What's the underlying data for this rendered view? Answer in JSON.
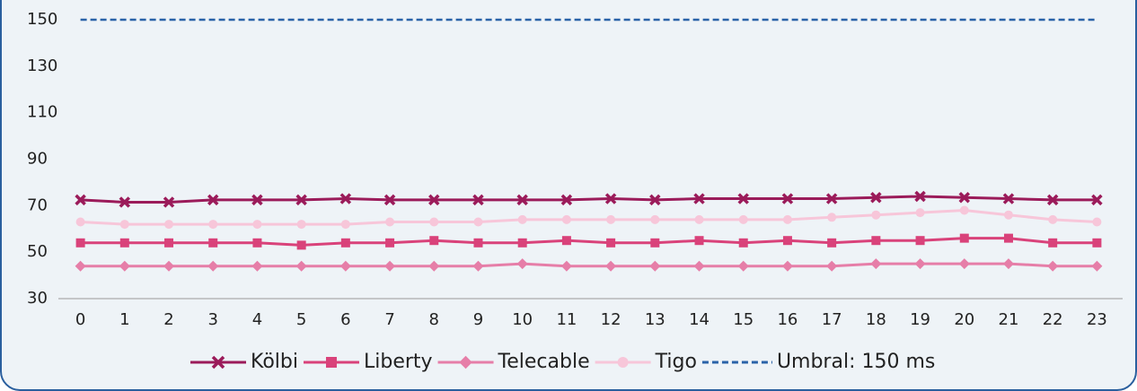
{
  "chart_data": {
    "type": "line",
    "categories": [
      "0",
      "1",
      "2",
      "3",
      "4",
      "5",
      "6",
      "7",
      "8",
      "9",
      "10",
      "11",
      "12",
      "13",
      "14",
      "15",
      "16",
      "17",
      "18",
      "19",
      "20",
      "21",
      "22",
      "23"
    ],
    "ylim": [
      30,
      150
    ],
    "yticks": [
      30,
      50,
      70,
      90,
      110,
      130,
      150
    ],
    "series": [
      {
        "name": "Kölbi",
        "color": "#9b1b5a",
        "marker": "x",
        "values": [
          72.5,
          71.5,
          71.5,
          72.5,
          72.5,
          72.5,
          73,
          72.5,
          72.5,
          72.5,
          72.5,
          72.5,
          73,
          72.5,
          73,
          73,
          73,
          73,
          73.5,
          74,
          73.5,
          73,
          72.5,
          72.5
        ]
      },
      {
        "name": "Liberty",
        "color": "#d9427a",
        "marker": "square",
        "values": [
          54,
          54,
          54,
          54,
          54,
          53,
          54,
          54,
          55,
          54,
          54,
          55,
          54,
          54,
          55,
          54,
          55,
          54,
          55,
          55,
          56,
          56,
          54,
          54
        ]
      },
      {
        "name": "Telecable",
        "color": "#e67ea8",
        "marker": "diamond",
        "values": [
          44,
          44,
          44,
          44,
          44,
          44,
          44,
          44,
          44,
          44,
          45,
          44,
          44,
          44,
          44,
          44,
          44,
          44,
          45,
          45,
          45,
          45,
          44,
          44
        ]
      },
      {
        "name": "Tigo",
        "color": "#f7c6d9",
        "marker": "circle",
        "values": [
          63,
          62,
          62,
          62,
          62,
          62,
          62,
          63,
          63,
          63,
          64,
          64,
          64,
          64,
          64,
          64,
          64,
          65,
          66,
          67,
          68,
          66,
          64,
          63
        ]
      },
      {
        "name": "Umbral: 150 ms",
        "color": "#2a63a8",
        "dash": true,
        "values": [
          150,
          150,
          150,
          150,
          150,
          150,
          150,
          150,
          150,
          150,
          150,
          150,
          150,
          150,
          150,
          150,
          150,
          150,
          150,
          150,
          150,
          150,
          150,
          150
        ]
      }
    ]
  }
}
